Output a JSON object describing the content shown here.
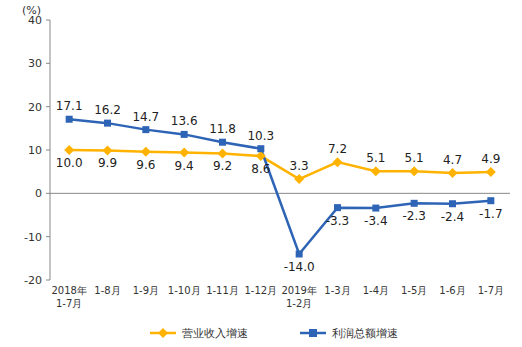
{
  "chart_data": {
    "type": "line",
    "ylabel": "(%)",
    "categories": [
      "2018年\n1-7月",
      "1-8月",
      "1-9月",
      "1-10月",
      "1-11月",
      "1-12月",
      "2019年\n1-2月",
      "1-3月",
      "1-4月",
      "1-5月",
      "1-6月",
      "1-7月"
    ],
    "series": [
      {
        "name": "营业收入增速",
        "color": "#FFB300",
        "marker": "diamond",
        "line_style": "solid",
        "values": [
          10.0,
          9.9,
          9.6,
          9.4,
          9.2,
          8.6,
          3.3,
          7.2,
          5.1,
          5.1,
          4.7,
          4.9
        ],
        "value_labels": [
          "10.0",
          "9.9",
          "9.6",
          "9.4",
          "9.2",
          "8.6",
          "3.3",
          "7.2",
          "5.1",
          "5.1",
          "4.7",
          "4.9"
        ]
      },
      {
        "name": "利润总额增速",
        "color": "#2E64B5",
        "marker": "square",
        "line_style": "solid",
        "values": [
          17.1,
          16.2,
          14.7,
          13.6,
          11.8,
          10.3,
          -14.0,
          -3.3,
          -3.4,
          -2.3,
          -2.4,
          -1.7
        ],
        "value_labels": [
          "17.1",
          "16.2",
          "14.7",
          "13.6",
          "11.8",
          "10.3",
          "-14.0",
          "-3.3",
          "-3.4",
          "-2.3",
          "-2.4",
          "-1.7"
        ]
      }
    ],
    "ylim": [
      -20,
      40
    ],
    "yticks": [
      -20,
      -10,
      0,
      10,
      20,
      30,
      40
    ],
    "grid": false,
    "legend": "bottom",
    "data_labels": true
  }
}
